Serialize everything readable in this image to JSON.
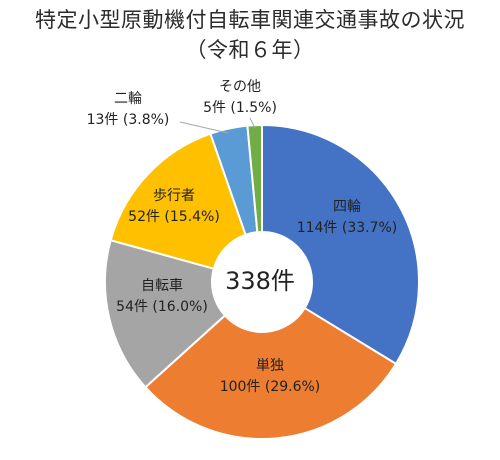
{
  "title_line_1": "特定小型原動機付自転車関連交通事故の状況",
  "title_line_2": "（令和６年）",
  "center_label": "338件",
  "chart_data": {
    "type": "pie",
    "title": "特定小型原動機付自転車関連交通事故の状況（令和６年）",
    "total": 338,
    "unit": "件",
    "series": [
      {
        "category": "四輪",
        "value": 114,
        "percent": 33.7,
        "value_label": "114件 (33.7%)",
        "color": "#4472C4"
      },
      {
        "category": "単独",
        "value": 100,
        "percent": 29.6,
        "value_label": "100件 (29.6%)",
        "color": "#ED7D31"
      },
      {
        "category": "自転車",
        "value": 54,
        "percent": 16.0,
        "value_label": "54件 (16.0%)",
        "color": "#A5A5A5"
      },
      {
        "category": "歩行者",
        "value": 52,
        "percent": 15.4,
        "value_label": "52件 (15.4%)",
        "color": "#FFC000"
      },
      {
        "category": "二輪",
        "value": 13,
        "percent": 3.8,
        "value_label": "13件 (3.8%)",
        "color": "#5B9BD5"
      },
      {
        "category": "その他",
        "value": 5,
        "percent": 1.5,
        "value_label": "5件 (1.5%)",
        "color": "#70AD47"
      }
    ]
  }
}
